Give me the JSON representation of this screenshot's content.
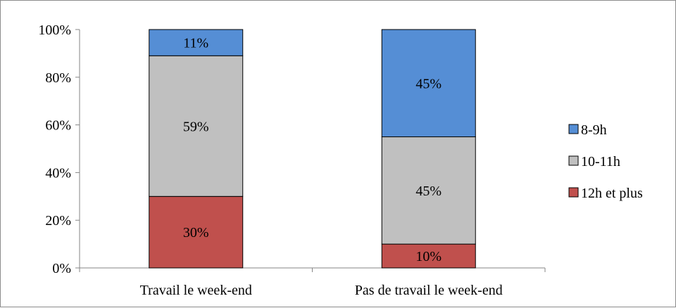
{
  "chart_data": {
    "type": "bar",
    "stacked": true,
    "percent": true,
    "categories": [
      "Travail le week-end",
      "Pas de travail le week-end"
    ],
    "series": [
      {
        "name": "12h et plus",
        "color": "#c0504d",
        "values": [
          30,
          10
        ],
        "labels": [
          "30%",
          "10%"
        ]
      },
      {
        "name": "10-11h",
        "color": "#c0c0c0",
        "values": [
          59,
          45
        ],
        "labels": [
          "59%",
          "45%"
        ]
      },
      {
        "name": "8-9h",
        "color": "#558ed5",
        "values": [
          11,
          45
        ],
        "labels": [
          "11%",
          "45%"
        ]
      }
    ],
    "legend_order": [
      "8-9h",
      "10-11h",
      "12h et plus"
    ],
    "legend_position": "right",
    "yticks": [
      "0%",
      "20%",
      "40%",
      "60%",
      "80%",
      "100%"
    ],
    "ylim": [
      0,
      100
    ],
    "grid": false,
    "title": "",
    "xlabel": "",
    "ylabel": ""
  }
}
